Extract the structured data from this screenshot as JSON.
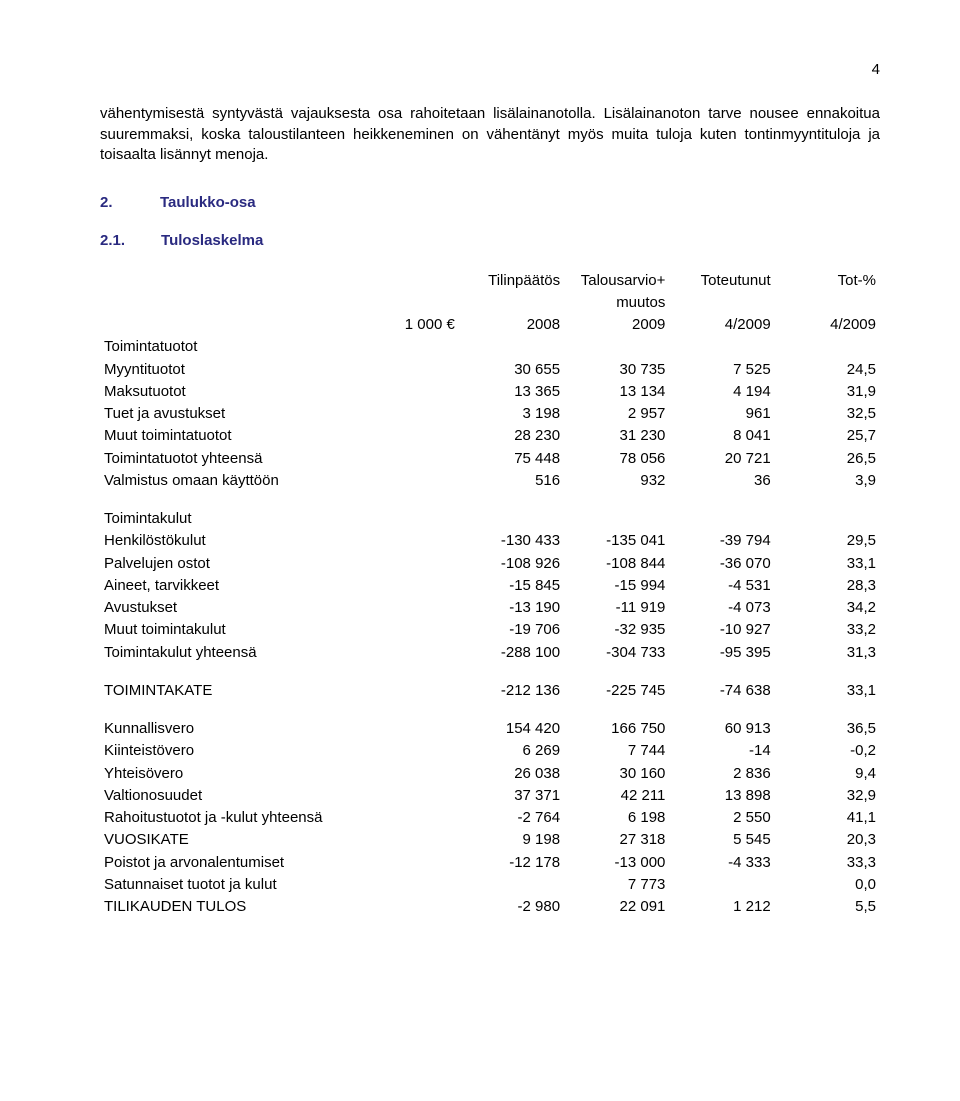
{
  "page_number": "4",
  "intro_paragraph": "vähentymisestä syntyvästä vajauksesta osa rahoitetaan lisälainanotolla. Lisälainanoton tarve nousee ennakoitua suuremmaksi, koska taloustilanteen heikkeneminen on vähentänyt myös muita tuloja kuten tontinmyyntituloja ja toisaalta lisännyt menoja.",
  "section2": {
    "num": "2.",
    "title": "Taulukko-osa"
  },
  "section21": {
    "num": "2.1.",
    "title": "Tuloslaskelma"
  },
  "table": {
    "header_top": {
      "c1": "Tilinpäätös",
      "c2": "Talousarvio+",
      "c3": "Toteutunut",
      "c4": "Tot-%"
    },
    "header_mid": {
      "c2": "muutos"
    },
    "header_bot": {
      "c0": "1 000 €",
      "c1": "2008",
      "c2": "2009",
      "c3": "4/2009",
      "c4": "4/2009"
    },
    "rows": [
      {
        "label": "Toimintatuotot",
        "c1": "",
        "c2": "",
        "c3": "",
        "c4": ""
      },
      {
        "label": "Myyntituotot",
        "c1": "30 655",
        "c2": "30 735",
        "c3": "7 525",
        "c4": "24,5"
      },
      {
        "label": "Maksutuotot",
        "c1": "13 365",
        "c2": "13 134",
        "c3": "4 194",
        "c4": "31,9"
      },
      {
        "label": "Tuet ja avustukset",
        "c1": "3 198",
        "c2": "2 957",
        "c3": "961",
        "c4": "32,5"
      },
      {
        "label": "Muut toimintatuotot",
        "c1": "28 230",
        "c2": "31 230",
        "c3": "8 041",
        "c4": "25,7"
      },
      {
        "label": "Toimintatuotot yhteensä",
        "c1": "75 448",
        "c2": "78 056",
        "c3": "20 721",
        "c4": "26,5"
      },
      {
        "label": "Valmistus omaan käyttöön",
        "c1": "516",
        "c2": "932",
        "c3": "36",
        "c4": "3,9"
      },
      {
        "gap": true
      },
      {
        "label": "Toimintakulut",
        "c1": "",
        "c2": "",
        "c3": "",
        "c4": ""
      },
      {
        "label": "Henkilöstökulut",
        "c1": "-130 433",
        "c2": "-135 041",
        "c3": "-39 794",
        "c4": "29,5"
      },
      {
        "label": "Palvelujen ostot",
        "c1": "-108 926",
        "c2": "-108 844",
        "c3": "-36 070",
        "c4": "33,1"
      },
      {
        "label": "Aineet, tarvikkeet",
        "c1": "-15 845",
        "c2": "-15 994",
        "c3": "-4 531",
        "c4": "28,3"
      },
      {
        "label": "Avustukset",
        "c1": "-13 190",
        "c2": "-11 919",
        "c3": "-4 073",
        "c4": "34,2"
      },
      {
        "label": "Muut toimintakulut",
        "c1": "-19 706",
        "c2": "-32 935",
        "c3": "-10 927",
        "c4": "33,2"
      },
      {
        "label": "Toimintakulut yhteensä",
        "c1": "-288 100",
        "c2": "-304 733",
        "c3": "-95 395",
        "c4": "31,3"
      },
      {
        "gap": true
      },
      {
        "label": "TOIMINTAKATE",
        "c1": "-212 136",
        "c2": "-225 745",
        "c3": "-74 638",
        "c4": "33,1"
      },
      {
        "gap": true
      },
      {
        "label": "Kunnallisvero",
        "c1": "154 420",
        "c2": "166 750",
        "c3": "60 913",
        "c4": "36,5"
      },
      {
        "label": "Kiinteistövero",
        "c1": "6 269",
        "c2": "7 744",
        "c3": "-14",
        "c4": "-0,2"
      },
      {
        "label": "Yhteisövero",
        "c1": "26 038",
        "c2": "30 160",
        "c3": "2 836",
        "c4": "9,4"
      },
      {
        "label": "Valtionosuudet",
        "c1": "37 371",
        "c2": "42 211",
        "c3": "13 898",
        "c4": "32,9"
      },
      {
        "label": "Rahoitustuotot ja -kulut yhteensä",
        "c1": "-2 764",
        "c2": "6 198",
        "c3": "2 550",
        "c4": "41,1"
      },
      {
        "label": "VUOSIKATE",
        "c1": "9 198",
        "c2": "27 318",
        "c3": "5 545",
        "c4": "20,3"
      },
      {
        "label": "Poistot ja arvonalentumiset",
        "c1": "-12 178",
        "c2": "-13 000",
        "c3": "-4 333",
        "c4": "33,3"
      },
      {
        "label": "Satunnaiset tuotot ja kulut",
        "c1": "",
        "c2": "7 773",
        "c3": "",
        "c4": "0,0"
      },
      {
        "label": "TILIKAUDEN TULOS",
        "c1": "-2 980",
        "c2": "22 091",
        "c3": "1 212",
        "c4": "5,5"
      }
    ]
  }
}
